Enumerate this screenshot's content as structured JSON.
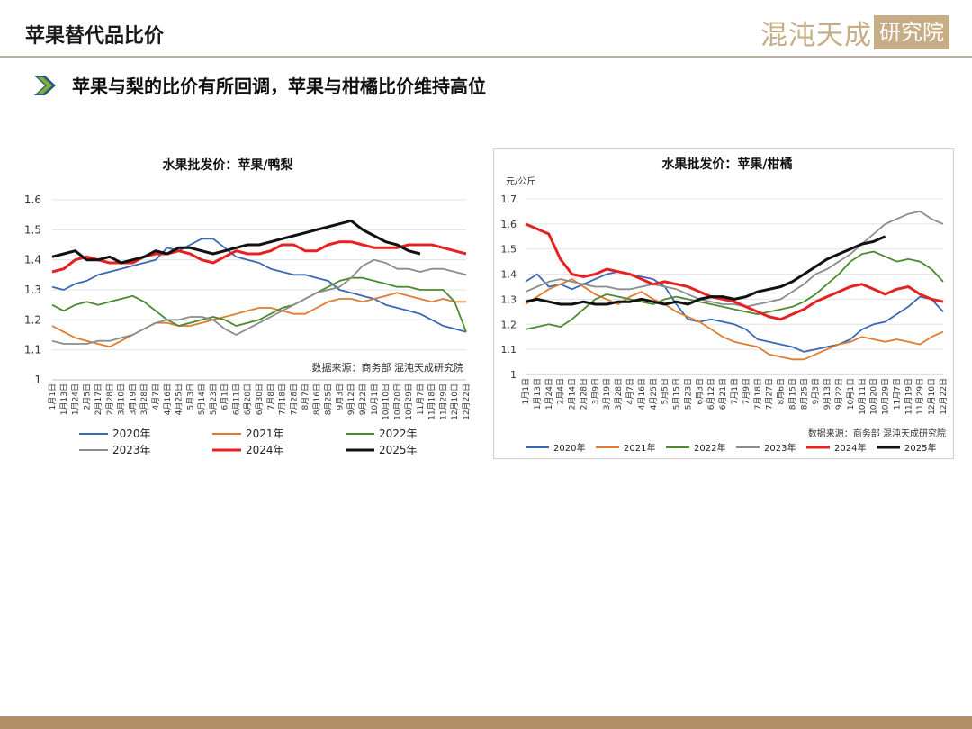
{
  "header": {
    "title": "苹果替代品比价",
    "logo_text": "混沌天成",
    "logo_box": "研究院"
  },
  "subtitle": "苹果与梨的比价有所回调，苹果与柑橘比价维持高位",
  "colors": {
    "2020": "#3a68b4",
    "2021": "#e07b30",
    "2022": "#4b8a2f",
    "2023": "#8c8c8c",
    "2024": "#e32221",
    "2025": "#111111",
    "accent": "#b29066"
  },
  "chart_data": [
    {
      "type": "line",
      "title": "水果批发价：苹果/鸭梨",
      "unit_label": "",
      "source": "数据来源：商务部   混沌天成研究院",
      "ylim": [
        1.0,
        1.6
      ],
      "yticks": [
        "1",
        "1.1",
        "1.2",
        "1.3",
        "1.4",
        "1.5",
        "1.6"
      ],
      "x_categories": [
        "1月1日",
        "1月13日",
        "1月24日",
        "2月5日",
        "2月17日",
        "2月28日",
        "3月10日",
        "3月19日",
        "3月28日",
        "4月7日",
        "4月16日",
        "4月25日",
        "5月3日",
        "5月14日",
        "5月23日",
        "6月1日",
        "6月11日",
        "6月20日",
        "6月30日",
        "7月8日",
        "7月18日",
        "7月28日",
        "8月7日",
        "8月16日",
        "8月25日",
        "9月3日",
        "9月12日",
        "9月22日",
        "10月1日",
        "10月10日",
        "10月20日",
        "10月29日",
        "11月7日",
        "11月18日",
        "11月29日",
        "12月10日",
        "12月22日"
      ],
      "series": [
        {
          "name": "2020年",
          "color_key": "2020",
          "values": [
            1.31,
            1.3,
            1.32,
            1.33,
            1.35,
            1.36,
            1.37,
            1.38,
            1.39,
            1.4,
            1.44,
            1.43,
            1.45,
            1.47,
            1.47,
            1.44,
            1.41,
            1.4,
            1.39,
            1.37,
            1.36,
            1.35,
            1.35,
            1.34,
            1.33,
            1.3,
            1.29,
            1.28,
            1.27,
            1.25,
            1.24,
            1.23,
            1.22,
            1.2,
            1.18,
            1.17,
            1.16
          ]
        },
        {
          "name": "2021年",
          "color_key": "2021",
          "values": [
            1.18,
            1.16,
            1.14,
            1.13,
            1.12,
            1.11,
            1.13,
            1.15,
            1.17,
            1.19,
            1.19,
            1.18,
            1.18,
            1.19,
            1.2,
            1.21,
            1.22,
            1.23,
            1.24,
            1.24,
            1.23,
            1.22,
            1.22,
            1.24,
            1.26,
            1.27,
            1.27,
            1.26,
            1.27,
            1.28,
            1.29,
            1.28,
            1.27,
            1.26,
            1.27,
            1.26,
            1.26
          ]
        },
        {
          "name": "2022年",
          "color_key": "2022",
          "values": [
            1.25,
            1.23,
            1.25,
            1.26,
            1.25,
            1.26,
            1.27,
            1.28,
            1.26,
            1.23,
            1.2,
            1.18,
            1.19,
            1.2,
            1.21,
            1.2,
            1.18,
            1.19,
            1.2,
            1.22,
            1.24,
            1.25,
            1.27,
            1.29,
            1.31,
            1.33,
            1.34,
            1.34,
            1.33,
            1.32,
            1.31,
            1.31,
            1.3,
            1.3,
            1.3,
            1.26,
            1.16
          ]
        },
        {
          "name": "2023年",
          "color_key": "2023",
          "values": [
            1.13,
            1.12,
            1.12,
            1.12,
            1.13,
            1.13,
            1.14,
            1.15,
            1.17,
            1.19,
            1.2,
            1.2,
            1.21,
            1.21,
            1.2,
            1.17,
            1.15,
            1.17,
            1.19,
            1.21,
            1.23,
            1.25,
            1.27,
            1.29,
            1.3,
            1.31,
            1.34,
            1.38,
            1.4,
            1.39,
            1.37,
            1.37,
            1.36,
            1.37,
            1.37,
            1.36,
            1.35
          ]
        },
        {
          "name": "2024年",
          "color_key": "2024",
          "values": [
            1.36,
            1.37,
            1.4,
            1.41,
            1.4,
            1.39,
            1.39,
            1.39,
            1.41,
            1.42,
            1.42,
            1.43,
            1.42,
            1.4,
            1.39,
            1.41,
            1.43,
            1.42,
            1.42,
            1.43,
            1.45,
            1.45,
            1.43,
            1.43,
            1.45,
            1.46,
            1.46,
            1.45,
            1.44,
            1.44,
            1.44,
            1.45,
            1.45,
            1.45,
            1.44,
            1.43,
            1.42
          ]
        },
        {
          "name": "2025年",
          "color_key": "2025",
          "values": [
            1.41,
            1.42,
            1.43,
            1.4,
            1.4,
            1.41,
            1.39,
            1.4,
            1.41,
            1.43,
            1.42,
            1.44,
            1.44,
            1.43,
            1.42,
            1.43,
            1.44,
            1.45,
            1.45,
            1.46,
            1.47,
            1.48,
            1.49,
            1.5,
            1.51,
            1.52,
            1.53,
            1.5,
            1.48,
            1.46,
            1.45,
            1.43,
            1.42,
            null,
            null,
            null,
            null
          ]
        }
      ]
    },
    {
      "type": "line",
      "title": "水果批发价：苹果/柑橘",
      "unit_label": "元/公斤",
      "source": "数据来源：商务部   混沌天成研究院",
      "ylim": [
        1.0,
        1.7
      ],
      "yticks": [
        "1",
        "1.1",
        "1.2",
        "1.3",
        "1.4",
        "1.5",
        "1.6",
        "1.7"
      ],
      "x_categories": [
        "1月1日",
        "1月13日",
        "1月24日",
        "2月4日",
        "2月14日",
        "2月28日",
        "3月9日",
        "3月19日",
        "3月28日",
        "4月7日",
        "4月16日",
        "4月25日",
        "5月5日",
        "5月15日",
        "5月23日",
        "6月3日",
        "6月12日",
        "6月21日",
        "7月1日",
        "7月9日",
        "7月18日",
        "7月27日",
        "8月6日",
        "8月15日",
        "8月25日",
        "9月3日",
        "9月13日",
        "9月22日",
        "10月1日",
        "10月11日",
        "10月20日",
        "10月29日",
        "11月7日",
        "11月19日",
        "11月29日",
        "12月10日",
        "12月22日"
      ],
      "series": [
        {
          "name": "2020年",
          "color_key": "2020",
          "values": [
            1.37,
            1.4,
            1.35,
            1.36,
            1.34,
            1.36,
            1.38,
            1.4,
            1.41,
            1.4,
            1.39,
            1.38,
            1.35,
            1.28,
            1.22,
            1.21,
            1.22,
            1.21,
            1.2,
            1.18,
            1.14,
            1.13,
            1.12,
            1.11,
            1.09,
            1.1,
            1.11,
            1.12,
            1.14,
            1.18,
            1.2,
            1.21,
            1.24,
            1.27,
            1.31,
            1.3,
            1.25
          ]
        },
        {
          "name": "2021年",
          "color_key": "2021",
          "values": [
            1.28,
            1.31,
            1.34,
            1.36,
            1.38,
            1.35,
            1.32,
            1.3,
            1.28,
            1.31,
            1.33,
            1.3,
            1.28,
            1.25,
            1.23,
            1.21,
            1.18,
            1.15,
            1.13,
            1.12,
            1.11,
            1.08,
            1.07,
            1.06,
            1.06,
            1.08,
            1.1,
            1.12,
            1.13,
            1.15,
            1.14,
            1.13,
            1.14,
            1.13,
            1.12,
            1.15,
            1.17
          ]
        },
        {
          "name": "2022年",
          "color_key": "2022",
          "values": [
            1.18,
            1.19,
            1.2,
            1.19,
            1.22,
            1.26,
            1.3,
            1.32,
            1.31,
            1.3,
            1.29,
            1.28,
            1.3,
            1.31,
            1.3,
            1.29,
            1.28,
            1.27,
            1.26,
            1.25,
            1.24,
            1.25,
            1.26,
            1.27,
            1.29,
            1.32,
            1.36,
            1.4,
            1.45,
            1.48,
            1.49,
            1.47,
            1.45,
            1.46,
            1.45,
            1.42,
            1.37
          ]
        },
        {
          "name": "2023年",
          "color_key": "2023",
          "values": [
            1.33,
            1.35,
            1.37,
            1.38,
            1.37,
            1.36,
            1.35,
            1.35,
            1.34,
            1.34,
            1.35,
            1.36,
            1.35,
            1.34,
            1.32,
            1.3,
            1.29,
            1.28,
            1.28,
            1.27,
            1.28,
            1.29,
            1.3,
            1.33,
            1.36,
            1.4,
            1.42,
            1.45,
            1.48,
            1.52,
            1.56,
            1.6,
            1.62,
            1.64,
            1.65,
            1.62,
            1.6
          ]
        },
        {
          "name": "2024年",
          "color_key": "2024",
          "values": [
            1.6,
            1.58,
            1.56,
            1.46,
            1.4,
            1.39,
            1.4,
            1.42,
            1.41,
            1.4,
            1.38,
            1.36,
            1.37,
            1.36,
            1.35,
            1.33,
            1.31,
            1.3,
            1.29,
            1.27,
            1.25,
            1.23,
            1.22,
            1.24,
            1.26,
            1.29,
            1.31,
            1.33,
            1.35,
            1.36,
            1.34,
            1.32,
            1.34,
            1.35,
            1.32,
            1.3,
            1.29
          ]
        },
        {
          "name": "2025年",
          "color_key": "2025",
          "values": [
            1.29,
            1.3,
            1.29,
            1.28,
            1.28,
            1.29,
            1.28,
            1.28,
            1.29,
            1.29,
            1.3,
            1.29,
            1.28,
            1.29,
            1.28,
            1.3,
            1.31,
            1.31,
            1.3,
            1.31,
            1.33,
            1.34,
            1.35,
            1.37,
            1.4,
            1.43,
            1.46,
            1.48,
            1.5,
            1.52,
            1.53,
            1.55,
            null,
            null,
            null,
            null,
            null
          ]
        }
      ]
    }
  ]
}
